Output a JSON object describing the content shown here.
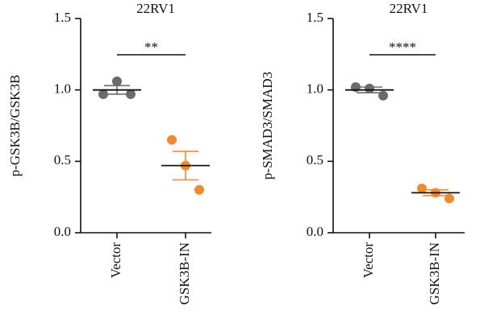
{
  "chart_data": [
    {
      "type": "dot",
      "title": "22RV1",
      "y_label": "p-GSK3B/GSK3B",
      "categories": [
        "Vector",
        "GSK3B-IN"
      ],
      "colors": [
        "#6b6b6b",
        "#f28a2b"
      ],
      "points": [
        [
          0.97,
          1.06,
          0.97
        ],
        [
          0.65,
          0.47,
          0.3
        ]
      ],
      "means": [
        1.0,
        0.47
      ],
      "sems": [
        0.03,
        0.1
      ],
      "annotation": "**",
      "ylim": [
        0,
        1.5
      ],
      "yticks": [
        {
          "value": 0,
          "label": "0.0"
        },
        {
          "value": 0.5,
          "label": "0.5"
        },
        {
          "value": 1,
          "label": "1.0"
        },
        {
          "value": 1.5,
          "label": "1.5"
        }
      ]
    },
    {
      "type": "dot",
      "title": "22RV1",
      "y_label": "p-SMAD3/SMAD3",
      "categories": [
        "Vector",
        "GSK3B-IN"
      ],
      "colors": [
        "#6b6b6b",
        "#f28a2b"
      ],
      "points": [
        [
          1.02,
          1.01,
          0.96
        ],
        [
          0.31,
          0.28,
          0.24
        ]
      ],
      "means": [
        1.0,
        0.28
      ],
      "sems": [
        0.02,
        0.02
      ],
      "annotation": "****",
      "ylim": [
        0,
        1.5
      ],
      "yticks": [
        {
          "value": 0,
          "label": "0.0"
        },
        {
          "value": 0.5,
          "label": "0.5"
        },
        {
          "value": 1,
          "label": "1.0"
        },
        {
          "value": 1.5,
          "label": "1.5"
        }
      ]
    }
  ]
}
